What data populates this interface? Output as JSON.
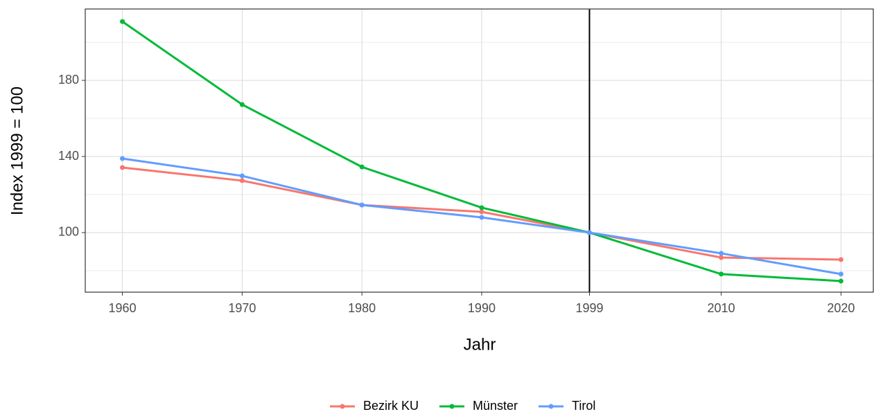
{
  "chart_data": {
    "type": "line",
    "x_label": "Jahr",
    "y_label": "Index 1999 = 100",
    "x": [
      1960,
      1970,
      1980,
      1990,
      1999,
      2010,
      2020
    ],
    "series": [
      {
        "name": "Bezirk KU",
        "color": "#f8766d",
        "values": [
          134.2,
          127.3,
          114.5,
          110.9,
          100,
          86.9,
          85.8
        ]
      },
      {
        "name": "Münster",
        "color": "#00ba38",
        "values": [
          210.9,
          167.3,
          134.5,
          113.1,
          100,
          78.2,
          74.5
        ]
      },
      {
        "name": "Tirol",
        "color": "#619cff",
        "values": [
          138.9,
          129.8,
          114.5,
          108,
          100,
          89.1,
          78.2
        ]
      }
    ],
    "xlim": [
      1956.9,
      2022.7
    ],
    "xticks": [
      1960,
      1970,
      1980,
      1990,
      1999,
      2010,
      2020
    ],
    "ylim": [
      68.7,
      217.5
    ],
    "yticks": [
      100,
      140,
      180
    ],
    "yminor": [
      80,
      120,
      160,
      200
    ],
    "vline": 1999,
    "grid": true,
    "legend": "bottom"
  }
}
